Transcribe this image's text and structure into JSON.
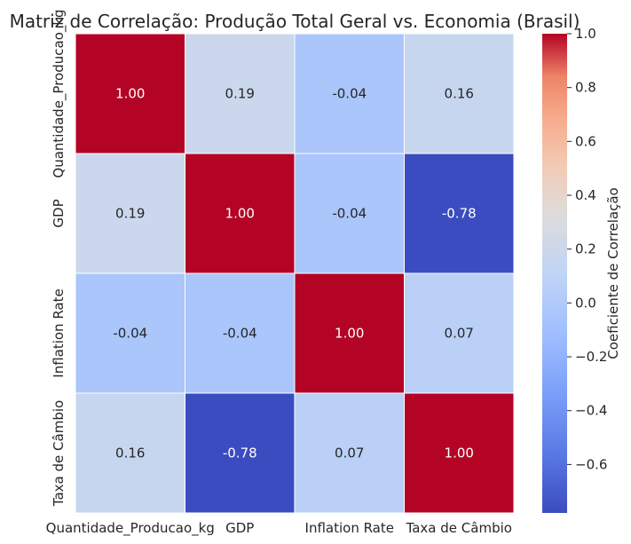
{
  "chart_data": {
    "type": "heatmap",
    "title": "Matriz de Correlação: Produção Total Geral vs. Economia (Brasil)",
    "row_labels": [
      "Quantidade_Producao_kg",
      "GDP",
      "Inflation Rate",
      "Taxa de Câmbio"
    ],
    "col_labels": [
      "Quantidade_Producao_kg",
      "GDP",
      "Inflation Rate",
      "Taxa de Câmbio"
    ],
    "values": [
      [
        1.0,
        0.19,
        -0.04,
        0.16
      ],
      [
        0.19,
        1.0,
        -0.04,
        -0.78
      ],
      [
        -0.04,
        -0.04,
        1.0,
        0.07
      ],
      [
        0.16,
        -0.78,
        0.07,
        1.0
      ]
    ],
    "cell_text": [
      [
        "1.00",
        "0.19",
        "-0.04",
        "0.16"
      ],
      [
        "0.19",
        "1.00",
        "-0.04",
        "-0.78"
      ],
      [
        "-0.04",
        "-0.04",
        "1.00",
        "0.07"
      ],
      [
        "0.16",
        "-0.78",
        "0.07",
        "1.00"
      ]
    ],
    "colormap": "coolwarm",
    "vmin": -0.78,
    "vmax": 1.0,
    "colorbar": {
      "label": "Coeficiente de Correlação",
      "ticks": [
        1.0,
        0.8,
        0.6,
        0.4,
        0.2,
        0.0,
        -0.2,
        -0.4,
        -0.6
      ],
      "tick_labels": [
        "1.0",
        "0.8",
        "0.6",
        "0.4",
        "0.2",
        "0.0",
        "−0.2",
        "−0.4",
        "−0.6"
      ]
    },
    "grid": false
  }
}
